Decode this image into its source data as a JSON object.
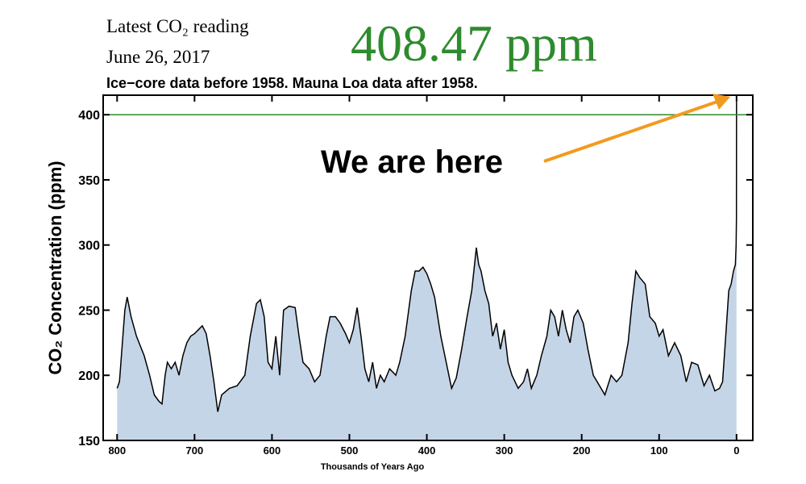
{
  "chart_data": {
    "type": "area",
    "header": {
      "label": "Latest CO₂ reading",
      "date": "June 26, 2017",
      "reading": "408.47 ppm"
    },
    "title": "Ice−core data before 1958. Mauna Loa data after 1958.",
    "x_label": "Thousands of Years Ago",
    "y_label": "CO₂ Concentration (ppm)",
    "annotation": "We are here",
    "reference_line": {
      "value": 400,
      "color": "#2e8b2e"
    },
    "color": "#c5d5e8",
    "line_color": "#000000",
    "xlim": [
      818,
      -21
    ],
    "ylim": [
      150,
      415
    ],
    "xticks": [
      800,
      700,
      600,
      500,
      400,
      300,
      200,
      100,
      0
    ],
    "yticks": [
      150,
      200,
      250,
      300,
      350,
      400
    ],
    "x": [
      800,
      797,
      790,
      787,
      782,
      775,
      765,
      758,
      752,
      746,
      742,
      738,
      735,
      730,
      725,
      720,
      715,
      710,
      705,
      700,
      695,
      690,
      685,
      680,
      675,
      670,
      665,
      655,
      645,
      635,
      628,
      620,
      615,
      610,
      605,
      600,
      595,
      590,
      585,
      578,
      570,
      565,
      560,
      552,
      545,
      538,
      530,
      525,
      518,
      512,
      505,
      500,
      495,
      490,
      485,
      480,
      475,
      470,
      465,
      460,
      455,
      448,
      440,
      435,
      428,
      420,
      415,
      410,
      405,
      400,
      395,
      390,
      382,
      375,
      368,
      362,
      355,
      348,
      342,
      336,
      333,
      330,
      325,
      320,
      315,
      310,
      305,
      300,
      295,
      290,
      282,
      275,
      270,
      265,
      258,
      252,
      245,
      240,
      235,
      230,
      225,
      220,
      215,
      210,
      205,
      198,
      192,
      185,
      180,
      175,
      170,
      162,
      155,
      148,
      140,
      135,
      130,
      125,
      118,
      112,
      105,
      100,
      95,
      88,
      80,
      72,
      65,
      58,
      50,
      42,
      35,
      28,
      22,
      18,
      14,
      10,
      7,
      4,
      1.5,
      0.5,
      0.1,
      0
    ],
    "values": [
      190,
      195,
      250,
      260,
      245,
      230,
      215,
      200,
      185,
      180,
      178,
      200,
      210,
      205,
      210,
      200,
      215,
      225,
      230,
      232,
      235,
      238,
      232,
      215,
      195,
      172,
      185,
      190,
      192,
      200,
      230,
      255,
      258,
      245,
      210,
      205,
      230,
      200,
      250,
      253,
      252,
      230,
      210,
      205,
      195,
      200,
      230,
      245,
      245,
      240,
      232,
      225,
      235,
      252,
      230,
      205,
      195,
      210,
      190,
      200,
      195,
      205,
      200,
      210,
      230,
      265,
      280,
      280,
      283,
      278,
      270,
      260,
      230,
      210,
      190,
      198,
      220,
      245,
      265,
      298,
      285,
      280,
      265,
      255,
      230,
      240,
      220,
      235,
      210,
      200,
      190,
      195,
      205,
      190,
      200,
      215,
      230,
      250,
      245,
      230,
      250,
      235,
      225,
      245,
      250,
      240,
      220,
      200,
      195,
      190,
      185,
      200,
      195,
      200,
      225,
      255,
      280,
      275,
      270,
      245,
      240,
      230,
      235,
      215,
      225,
      215,
      195,
      210,
      208,
      192,
      200,
      188,
      190,
      195,
      230,
      265,
      270,
      280,
      285,
      300,
      320,
      410
    ]
  }
}
